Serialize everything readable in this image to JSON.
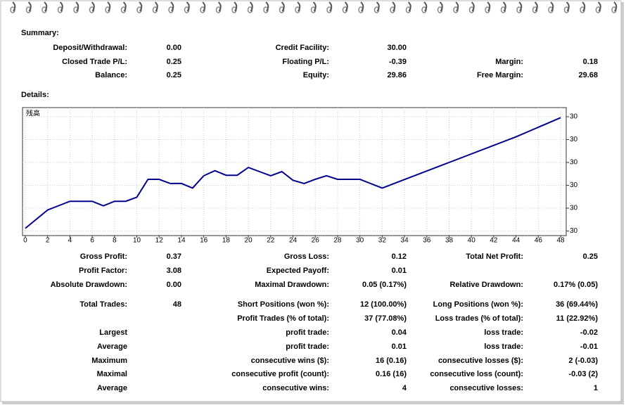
{
  "summary": {
    "title": "Summary:",
    "rows": [
      [
        "Deposit/Withdrawal:",
        "0.00",
        "Credit Facility:",
        "30.00",
        null,
        null
      ],
      [
        "Closed Trade P/L:",
        "0.25",
        "Floating P/L:",
        "-0.39",
        "Margin:",
        "0.18"
      ],
      [
        "Balance:",
        "0.25",
        "Equity:",
        "29.86",
        "Free Margin:",
        "29.68"
      ]
    ]
  },
  "details": {
    "title": "Details:"
  },
  "chart_data": {
    "type": "line",
    "y_label": "残高",
    "color": "#00008b",
    "x": [
      0,
      2,
      4,
      6,
      7,
      8,
      9,
      10,
      11,
      12,
      13,
      14,
      15,
      16,
      17,
      18,
      19,
      20,
      21,
      22,
      23,
      24,
      25,
      26,
      27,
      28,
      29,
      30,
      32,
      38,
      44,
      48
    ],
    "values": [
      30.006,
      30.046,
      30.065,
      30.065,
      30.055,
      30.065,
      30.065,
      30.074,
      30.113,
      30.113,
      30.104,
      30.104,
      30.094,
      30.121,
      30.132,
      30.122,
      30.122,
      30.139,
      30.13,
      30.121,
      30.13,
      30.111,
      30.104,
      30.113,
      30.121,
      30.113,
      30.113,
      30.113,
      30.094,
      30.15,
      30.206,
      30.248
    ],
    "xlim": [
      -0.25,
      48.5
    ],
    "ylim": [
      29.99,
      30.27
    ],
    "xticks": [
      0,
      2,
      4,
      6,
      8,
      10,
      12,
      14,
      16,
      18,
      20,
      22,
      24,
      26,
      28,
      30,
      32,
      34,
      36,
      38,
      40,
      42,
      44,
      46,
      48
    ],
    "yticks": [
      {
        "value": 30.0,
        "label": "30"
      },
      {
        "value": 30.05,
        "label": "30"
      },
      {
        "value": 30.1,
        "label": "30"
      },
      {
        "value": 30.15,
        "label": "30"
      },
      {
        "value": 30.2,
        "label": "30"
      },
      {
        "value": 30.25,
        "label": "30"
      }
    ],
    "grid": true
  },
  "stats": {
    "rows": [
      [
        "Gross Profit:",
        "0.37",
        "Gross Loss:",
        "0.12",
        "Total Net Profit:",
        "0.25"
      ],
      [
        "Profit Factor:",
        "3.08",
        "Expected Payoff:",
        "0.01",
        null,
        null
      ],
      [
        "Absolute Drawdown:",
        "0.00",
        "Maximal Drawdown:",
        "0.05 (0.17%)",
        "Relative Drawdown:",
        "0.17% (0.05)"
      ],
      [
        "Total Trades:",
        "48",
        "Short Positions (won %):",
        "12 (100.00%)",
        "Long Positions (won %):",
        "36 (69.44%)"
      ],
      [
        null,
        null,
        "Profit Trades (% of total):",
        "37 (77.08%)",
        "Loss trades (% of total):",
        "11 (22.92%)"
      ],
      [
        "Largest",
        null,
        "profit trade:",
        "0.04",
        "loss trade:",
        "-0.02"
      ],
      [
        "Average",
        null,
        "profit trade:",
        "0.01",
        "loss trade:",
        "-0.01"
      ],
      [
        "Maximum",
        null,
        "consecutive wins ($):",
        "16 (0.16)",
        "consecutive losses ($):",
        "2 (-0.03)"
      ],
      [
        "Maximal",
        null,
        "consecutive profit (count):",
        "0.16 (16)",
        "consecutive loss (count):",
        "-0.03 (2)"
      ],
      [
        "Average",
        null,
        "consecutive wins:",
        "4",
        "consecutive losses:",
        "1"
      ]
    ]
  }
}
